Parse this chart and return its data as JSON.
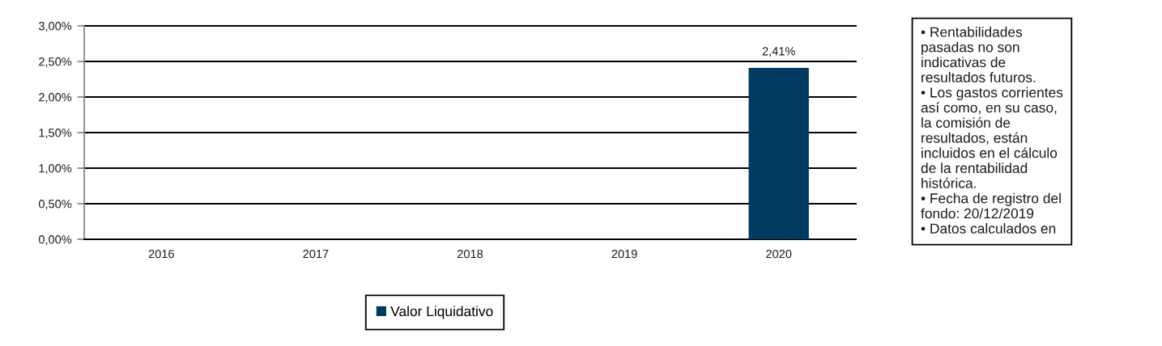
{
  "chart_data": {
    "type": "bar",
    "categories": [
      "2016",
      "2017",
      "2018",
      "2019",
      "2020"
    ],
    "series": [
      {
        "name": "Valor Liquidativo",
        "color": "#003a60",
        "values": [
          null,
          null,
          null,
          null,
          2.41
        ],
        "value_labels": [
          null,
          null,
          null,
          null,
          "2,41%"
        ]
      }
    ],
    "ylim": [
      0,
      3
    ],
    "yticks": [
      {
        "value": 0,
        "label": "0,00%"
      },
      {
        "value": 0.5,
        "label": "0,50%"
      },
      {
        "value": 1,
        "label": "1,00%"
      },
      {
        "value": 1.5,
        "label": "1,50%"
      },
      {
        "value": 2,
        "label": "2,00%"
      },
      {
        "value": 2.5,
        "label": "2,50%"
      },
      {
        "value": 3,
        "label": "3,00%"
      }
    ],
    "grid": "y",
    "legend": "bottom",
    "annotations": [
      "• Rentabilidades\npasadas no son\nindicativas de\nresultados futuros.\n• Los gastos corrientes\nasí como, en su caso,\nla comisión de\nresultados, están\nincluidos en el cálculo\nde la rentabilidad\nhistórica.\n• Fecha de registro del\nfondo: 20/12/2019\n• Datos calculados en"
    ]
  }
}
